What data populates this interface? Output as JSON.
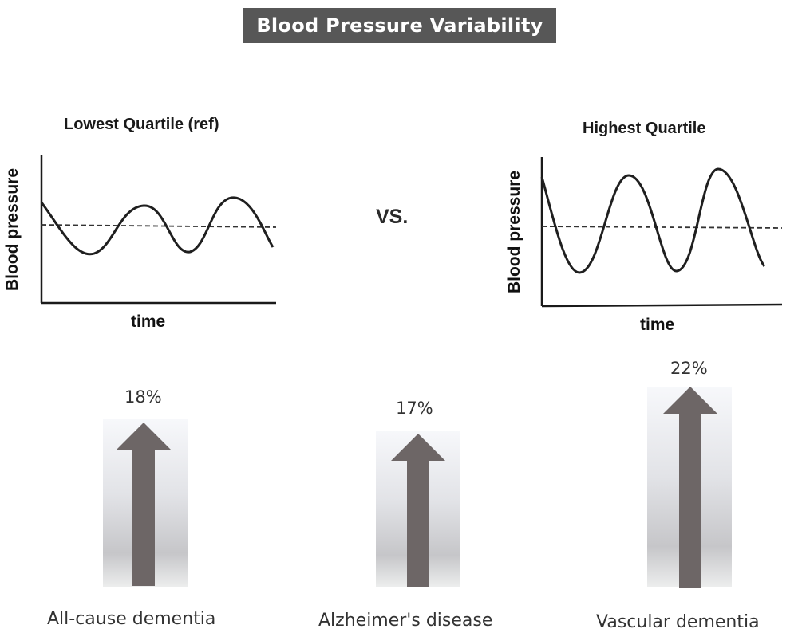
{
  "title": "Blood Pressure Variability",
  "vs_label": "VS.",
  "panels": [
    {
      "title": "Lowest Quartile (ref)",
      "y_label": "Blood pressure",
      "x_label": "time",
      "variability": "low"
    },
    {
      "title": "Highest Quartile",
      "y_label": "Blood pressure",
      "x_label": "time",
      "variability": "high"
    }
  ],
  "arrows": [
    {
      "label": "All-cause dementia",
      "value_text": "18%",
      "value": 18
    },
    {
      "label": "Alzheimer's disease",
      "value_text": "17%",
      "value": 17
    },
    {
      "label": "Vascular dementia",
      "value_text": "22%",
      "value": 22
    }
  ],
  "colors": {
    "banner": "#575757",
    "arrow": "#6d6666",
    "wave": "#1f1f1f"
  }
}
